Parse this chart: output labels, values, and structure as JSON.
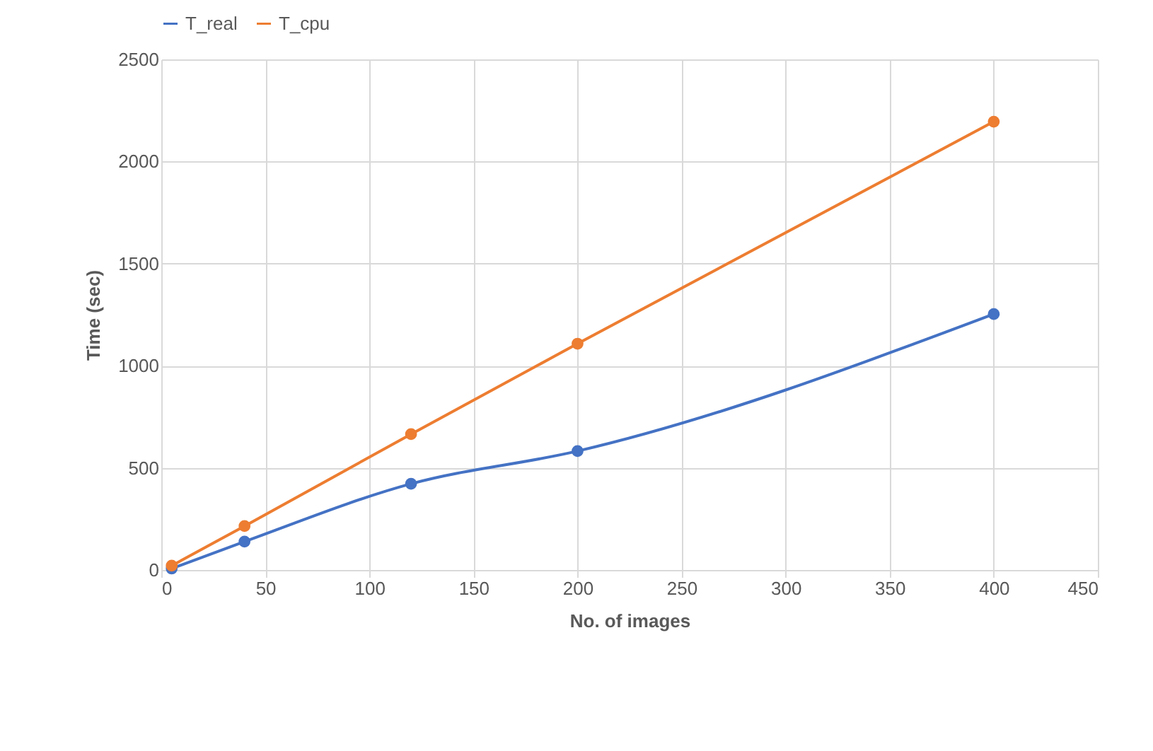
{
  "chart_data": {
    "type": "line",
    "xlabel": "No. of images",
    "ylabel": "Time (sec)",
    "x": [
      5,
      40,
      120,
      200,
      400
    ],
    "series": [
      {
        "name": "T_real",
        "color": "#4472c4",
        "values": [
          7,
          139,
          422,
          582,
          1253
        ]
      },
      {
        "name": "T_cpu",
        "color": "#ed7d31",
        "values": [
          21,
          215,
          665,
          1108,
          2195
        ]
      }
    ],
    "xlim": [
      0,
      450
    ],
    "xticks": [
      0,
      50,
      100,
      150,
      200,
      250,
      300,
      350,
      400,
      450
    ],
    "ylim": [
      0,
      2500
    ],
    "yticks": [
      0,
      500,
      1000,
      1500,
      2000,
      2500
    ],
    "grid": true,
    "legend": "top",
    "marker": "circle",
    "line_style": "solid"
  }
}
